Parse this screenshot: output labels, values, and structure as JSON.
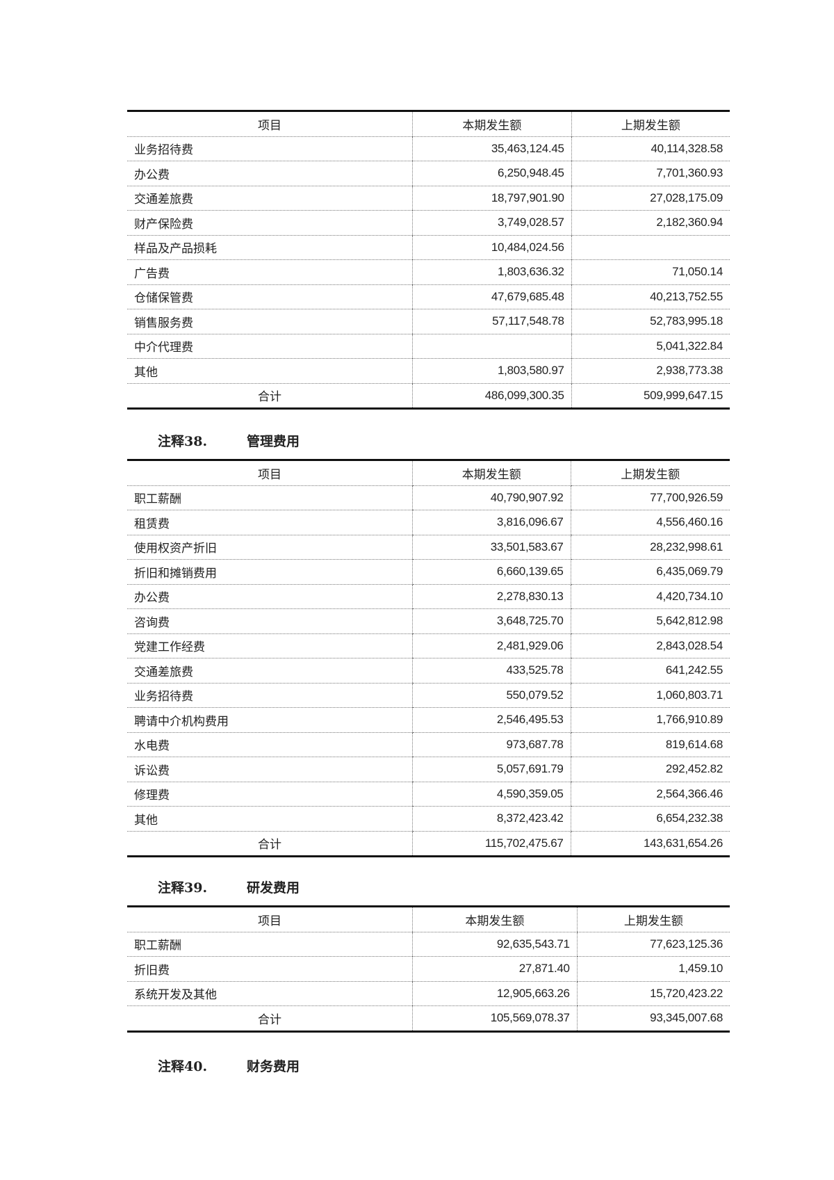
{
  "headers": [
    "项目",
    "本期发生额",
    "上期发生额"
  ],
  "table1": {
    "rows": [
      [
        "业务招待费",
        "35,463,124.45",
        "40,114,328.58"
      ],
      [
        "办公费",
        "6,250,948.45",
        "7,701,360.93"
      ],
      [
        "交通差旅费",
        "18,797,901.90",
        "27,028,175.09"
      ],
      [
        "财产保险费",
        "3,749,028.57",
        "2,182,360.94"
      ],
      [
        "样品及产品损耗",
        "10,484,024.56",
        ""
      ],
      [
        "广告费",
        "1,803,636.32",
        "71,050.14"
      ],
      [
        "仓储保管费",
        "47,679,685.48",
        "40,213,752.55"
      ],
      [
        "销售服务费",
        "57,117,548.78",
        "52,783,995.18"
      ],
      [
        "中介代理费",
        "",
        "5,041,322.84"
      ],
      [
        "其他",
        "1,803,580.97",
        "2,938,773.38"
      ]
    ],
    "total": [
      "合计",
      "486,099,300.35",
      "509,999,647.15"
    ]
  },
  "section38": {
    "num": "注释38.",
    "title": "管理费用"
  },
  "table2": {
    "rows": [
      [
        "职工薪酬",
        "40,790,907.92",
        "77,700,926.59"
      ],
      [
        "租赁费",
        "3,816,096.67",
        "4,556,460.16"
      ],
      [
        "使用权资产折旧",
        "33,501,583.67",
        "28,232,998.61"
      ],
      [
        "折旧和摊销费用",
        "6,660,139.65",
        "6,435,069.79"
      ],
      [
        "办公费",
        "2,278,830.13",
        "4,420,734.10"
      ],
      [
        "咨询费",
        "3,648,725.70",
        "5,642,812.98"
      ],
      [
        "党建工作经费",
        "2,481,929.06",
        "2,843,028.54"
      ],
      [
        "交通差旅费",
        "433,525.78",
        "641,242.55"
      ],
      [
        "业务招待费",
        "550,079.52",
        "1,060,803.71"
      ],
      [
        "聘请中介机构费用",
        "2,546,495.53",
        "1,766,910.89"
      ],
      [
        "水电费",
        "973,687.78",
        "819,614.68"
      ],
      [
        "诉讼费",
        "5,057,691.79",
        "292,452.82"
      ],
      [
        "修理费",
        "4,590,359.05",
        "2,564,366.46"
      ],
      [
        "其他",
        "8,372,423.42",
        "6,654,232.38"
      ]
    ],
    "total": [
      "合计",
      "115,702,475.67",
      "143,631,654.26"
    ]
  },
  "section39": {
    "num": "注释39.",
    "title": "研发费用"
  },
  "table3": {
    "rows": [
      [
        "职工薪酬",
        "92,635,543.71",
        "77,623,125.36"
      ],
      [
        "折旧费",
        "27,871.40",
        "1,459.10"
      ],
      [
        "系统开发及其他",
        "12,905,663.26",
        "15,720,423.22"
      ]
    ],
    "total": [
      "合计",
      "105,569,078.37",
      "93,345,007.68"
    ]
  },
  "section40": {
    "num": "注释40.",
    "title": "财务费用"
  }
}
